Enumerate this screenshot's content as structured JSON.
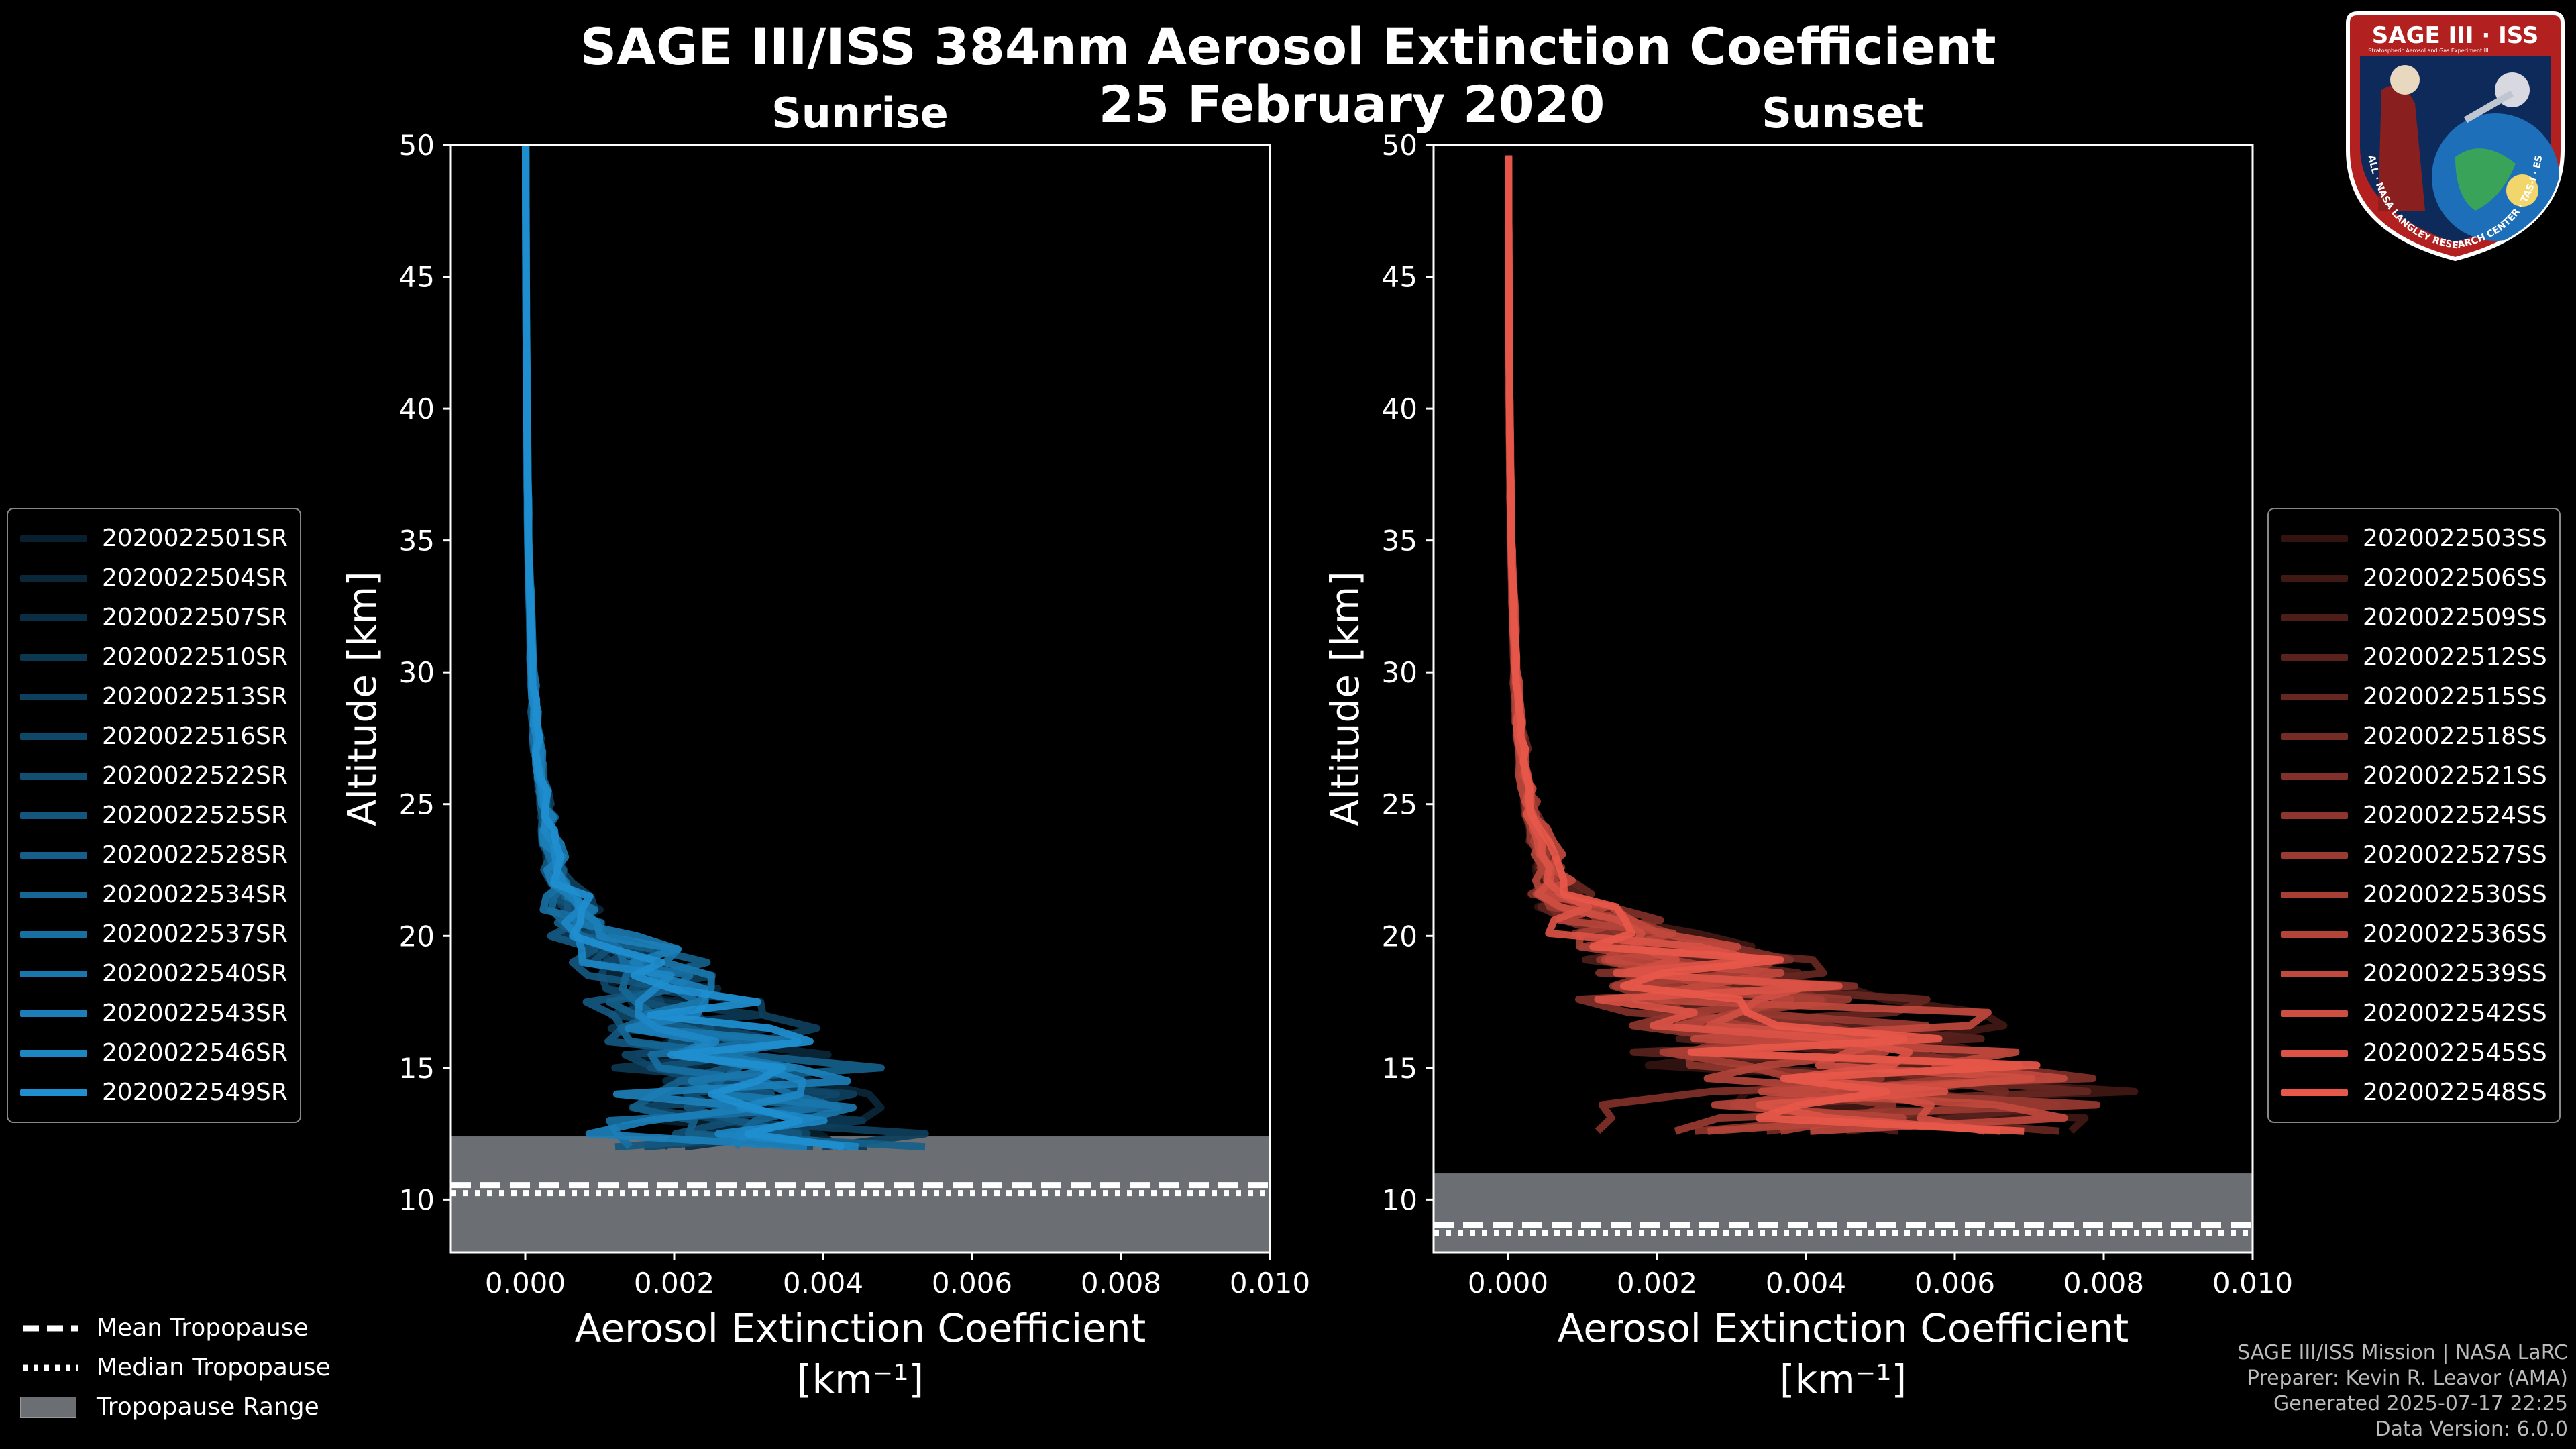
{
  "title": {
    "line1": "SAGE III/ISS 384nm Aerosol Extinction Coefficient",
    "line2": "25 February 2020"
  },
  "logo": {
    "title": "SAGE III · ISS",
    "subtitle": "Stratospheric Aerosol and Gas Experiment III",
    "ring": "BALL · NASA LANGLEY RESEARCH CENTER · TAS-I · ESA"
  },
  "colors": {
    "sunrise": "#1f8fd0",
    "sunset": "#e8584a",
    "tropo_fill": "#6b6e72"
  },
  "chart_data": [
    {
      "type": "line",
      "panel": "Sunrise",
      "title": "Sunrise",
      "xlabel": "Aerosol Extinction Coefficient",
      "xunits": "[km⁻¹]",
      "ylabel": "Altitude [km]",
      "xlim": [
        -0.001,
        0.01
      ],
      "ylim": [
        8,
        50
      ],
      "xticks": [
        "0.000",
        "0.002",
        "0.004",
        "0.006",
        "0.008",
        "0.010"
      ],
      "xtick_values": [
        0,
        0.002,
        0.004,
        0.006,
        0.008,
        0.01
      ],
      "yticks": [
        10,
        15,
        20,
        25,
        30,
        35,
        40,
        45,
        50
      ],
      "tropopause": {
        "mean": 10.4,
        "median": 10.4,
        "range": [
          8,
          12.4
        ]
      },
      "base_profile": {
        "alt": [
          12,
          13,
          14,
          15,
          16,
          17,
          18,
          19,
          20,
          21,
          22,
          24,
          26,
          28,
          30,
          35,
          40,
          45,
          50
        ],
        "ext": [
          0.0032,
          0.003,
          0.0028,
          0.0026,
          0.0024,
          0.0021,
          0.0017,
          0.0013,
          0.0009,
          0.0006,
          0.00045,
          0.0003,
          0.0002,
          0.00013,
          9e-05,
          4e-05,
          2e-05,
          1e-05,
          5e-06
        ]
      },
      "series": [
        {
          "name": "2020022501SR",
          "scale": 0.9,
          "jitter": 0.9
        },
        {
          "name": "2020022504SR",
          "scale": 1.1,
          "jitter": 1.0
        },
        {
          "name": "2020022507SR",
          "scale": 0.85,
          "jitter": 0.8
        },
        {
          "name": "2020022510SR",
          "scale": 1.0,
          "jitter": 1.2
        },
        {
          "name": "2020022513SR",
          "scale": 1.2,
          "jitter": 0.9
        },
        {
          "name": "2020022516SR",
          "scale": 0.95,
          "jitter": 1.1
        },
        {
          "name": "2020022522SR",
          "scale": 1.05,
          "jitter": 0.7
        },
        {
          "name": "2020022525SR",
          "scale": 0.8,
          "jitter": 1.0
        },
        {
          "name": "2020022528SR",
          "scale": 1.15,
          "jitter": 1.3
        },
        {
          "name": "2020022534SR",
          "scale": 1.0,
          "jitter": 0.8
        },
        {
          "name": "2020022537SR",
          "scale": 0.9,
          "jitter": 1.2
        },
        {
          "name": "2020022540SR",
          "scale": 1.25,
          "jitter": 1.0
        },
        {
          "name": "2020022543SR",
          "scale": 1.05,
          "jitter": 1.4
        },
        {
          "name": "2020022546SR",
          "scale": 0.95,
          "jitter": 0.9
        },
        {
          "name": "2020022549SR",
          "scale": 1.1,
          "jitter": 1.1
        }
      ]
    },
    {
      "type": "line",
      "panel": "Sunset",
      "title": "Sunset",
      "xlabel": "Aerosol Extinction Coefficient",
      "xunits": "[km⁻¹]",
      "ylabel": "Altitude [km]",
      "xlim": [
        -0.001,
        0.01
      ],
      "ylim": [
        8,
        50
      ],
      "xticks": [
        "0.000",
        "0.002",
        "0.004",
        "0.006",
        "0.008",
        "0.010"
      ],
      "xtick_values": [
        0,
        0.002,
        0.004,
        0.006,
        0.008,
        0.01
      ],
      "yticks": [
        10,
        15,
        20,
        25,
        30,
        35,
        40,
        45,
        50
      ],
      "tropopause": {
        "mean": 8.9,
        "median": 8.9,
        "range": [
          8,
          11.0
        ]
      },
      "base_profile": {
        "alt": [
          12.6,
          13,
          14,
          15,
          16,
          17,
          18,
          19,
          20,
          21,
          22,
          24,
          26,
          28,
          30,
          35,
          40,
          45,
          50
        ],
        "ext": [
          0.0042,
          0.0045,
          0.0046,
          0.0044,
          0.004,
          0.0035,
          0.003,
          0.0024,
          0.0016,
          0.0009,
          0.0006,
          0.00035,
          0.00022,
          0.00014,
          0.0001,
          4e-05,
          2e-05,
          1e-05,
          5e-06
        ]
      },
      "series": [
        {
          "name": "2020022503SS",
          "scale": 0.9,
          "jitter": 1.0
        },
        {
          "name": "2020022506SS",
          "scale": 1.1,
          "jitter": 1.3
        },
        {
          "name": "2020022509SS",
          "scale": 0.85,
          "jitter": 0.9
        },
        {
          "name": "2020022512SS",
          "scale": 1.0,
          "jitter": 1.2
        },
        {
          "name": "2020022515SS",
          "scale": 1.2,
          "jitter": 1.1
        },
        {
          "name": "2020022518SS",
          "scale": 0.95,
          "jitter": 1.0
        },
        {
          "name": "2020022521SS",
          "scale": 1.05,
          "jitter": 1.4
        },
        {
          "name": "2020022524SS",
          "scale": 0.8,
          "jitter": 0.8
        },
        {
          "name": "2020022527SS",
          "scale": 1.15,
          "jitter": 1.2
        },
        {
          "name": "2020022530SS",
          "scale": 1.0,
          "jitter": 1.0
        },
        {
          "name": "2020022536SS",
          "scale": 0.9,
          "jitter": 1.3
        },
        {
          "name": "2020022539SS",
          "scale": 1.25,
          "jitter": 1.1
        },
        {
          "name": "2020022542SS",
          "scale": 1.05,
          "jitter": 0.9
        },
        {
          "name": "2020022545SS",
          "scale": 0.95,
          "jitter": 1.2
        },
        {
          "name": "2020022548SS",
          "scale": 1.1,
          "jitter": 1.0
        }
      ]
    }
  ],
  "tropo_legend": {
    "mean": "Mean Tropopause",
    "median": "Median Tropopause",
    "range": "Tropopause Range"
  },
  "footer": {
    "line1": "SAGE III/ISS Mission | NASA LaRC",
    "line2": "Preparer: Kevin R. Leavor (AMA)",
    "line3": "Generated 2025-07-17 22:25",
    "line4": "Data Version: 6.0.0"
  }
}
